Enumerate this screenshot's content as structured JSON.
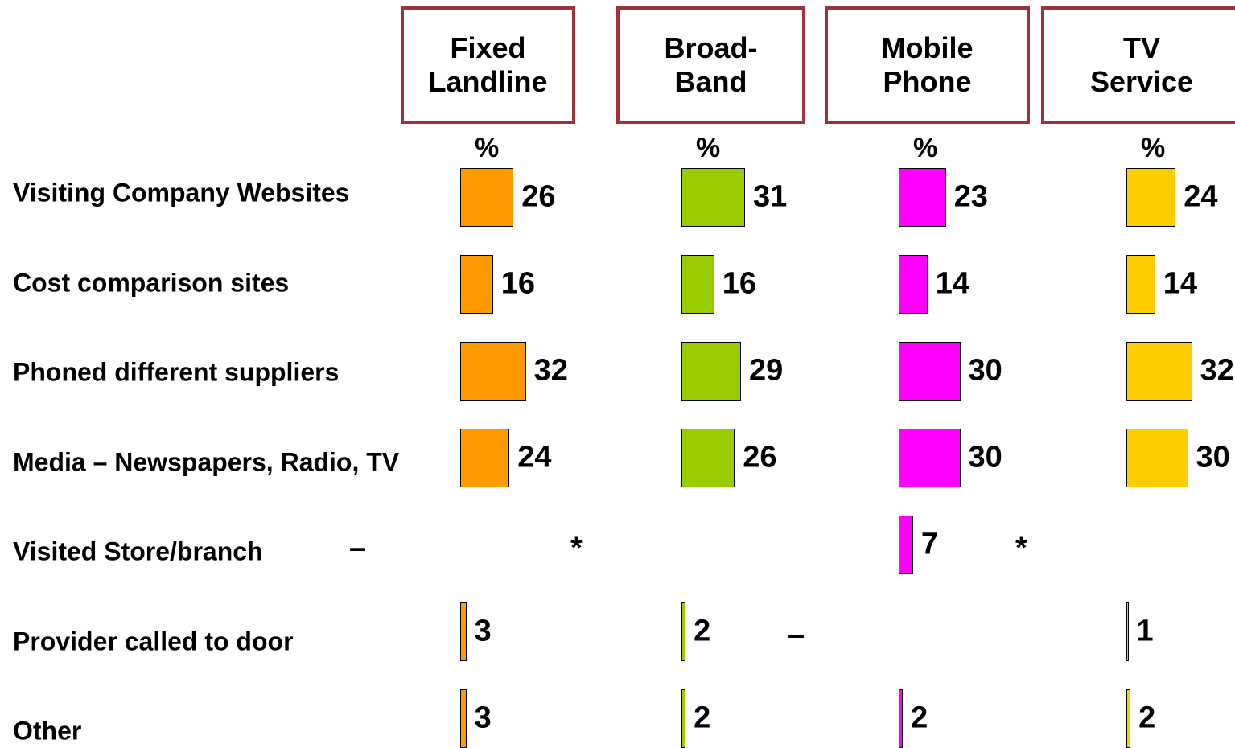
{
  "chart_data": {
    "type": "bar",
    "orientation": "horizontal",
    "unit_label": "%",
    "categories": [
      "Visiting Company Websites",
      "Cost comparison sites",
      "Phoned different suppliers",
      "Media – Newspapers, Radio, TV",
      "Visited Store/branch",
      "Provider called to door",
      "Other"
    ],
    "series": [
      {
        "name": "Fixed Landline",
        "color": "#ff9900",
        "values": [
          26,
          16,
          32,
          24,
          null,
          3,
          3
        ],
        "value_labels": [
          null,
          null,
          null,
          null,
          "–",
          null,
          null
        ]
      },
      {
        "name": "Broad-Band",
        "color": "#99cc00",
        "values": [
          31,
          16,
          29,
          26,
          null,
          2,
          2
        ],
        "value_labels": [
          null,
          null,
          null,
          null,
          "*",
          null,
          null
        ]
      },
      {
        "name": "Mobile Phone",
        "color": "#ff00ff",
        "values": [
          23,
          14,
          30,
          30,
          7,
          null,
          2
        ],
        "value_labels": [
          null,
          null,
          null,
          null,
          null,
          "–",
          null
        ]
      },
      {
        "name": "TV Service",
        "color": "#ffcc00",
        "values": [
          24,
          14,
          32,
          30,
          null,
          1,
          2
        ],
        "value_labels": [
          null,
          null,
          null,
          null,
          "*",
          null,
          null
        ]
      }
    ]
  }
}
